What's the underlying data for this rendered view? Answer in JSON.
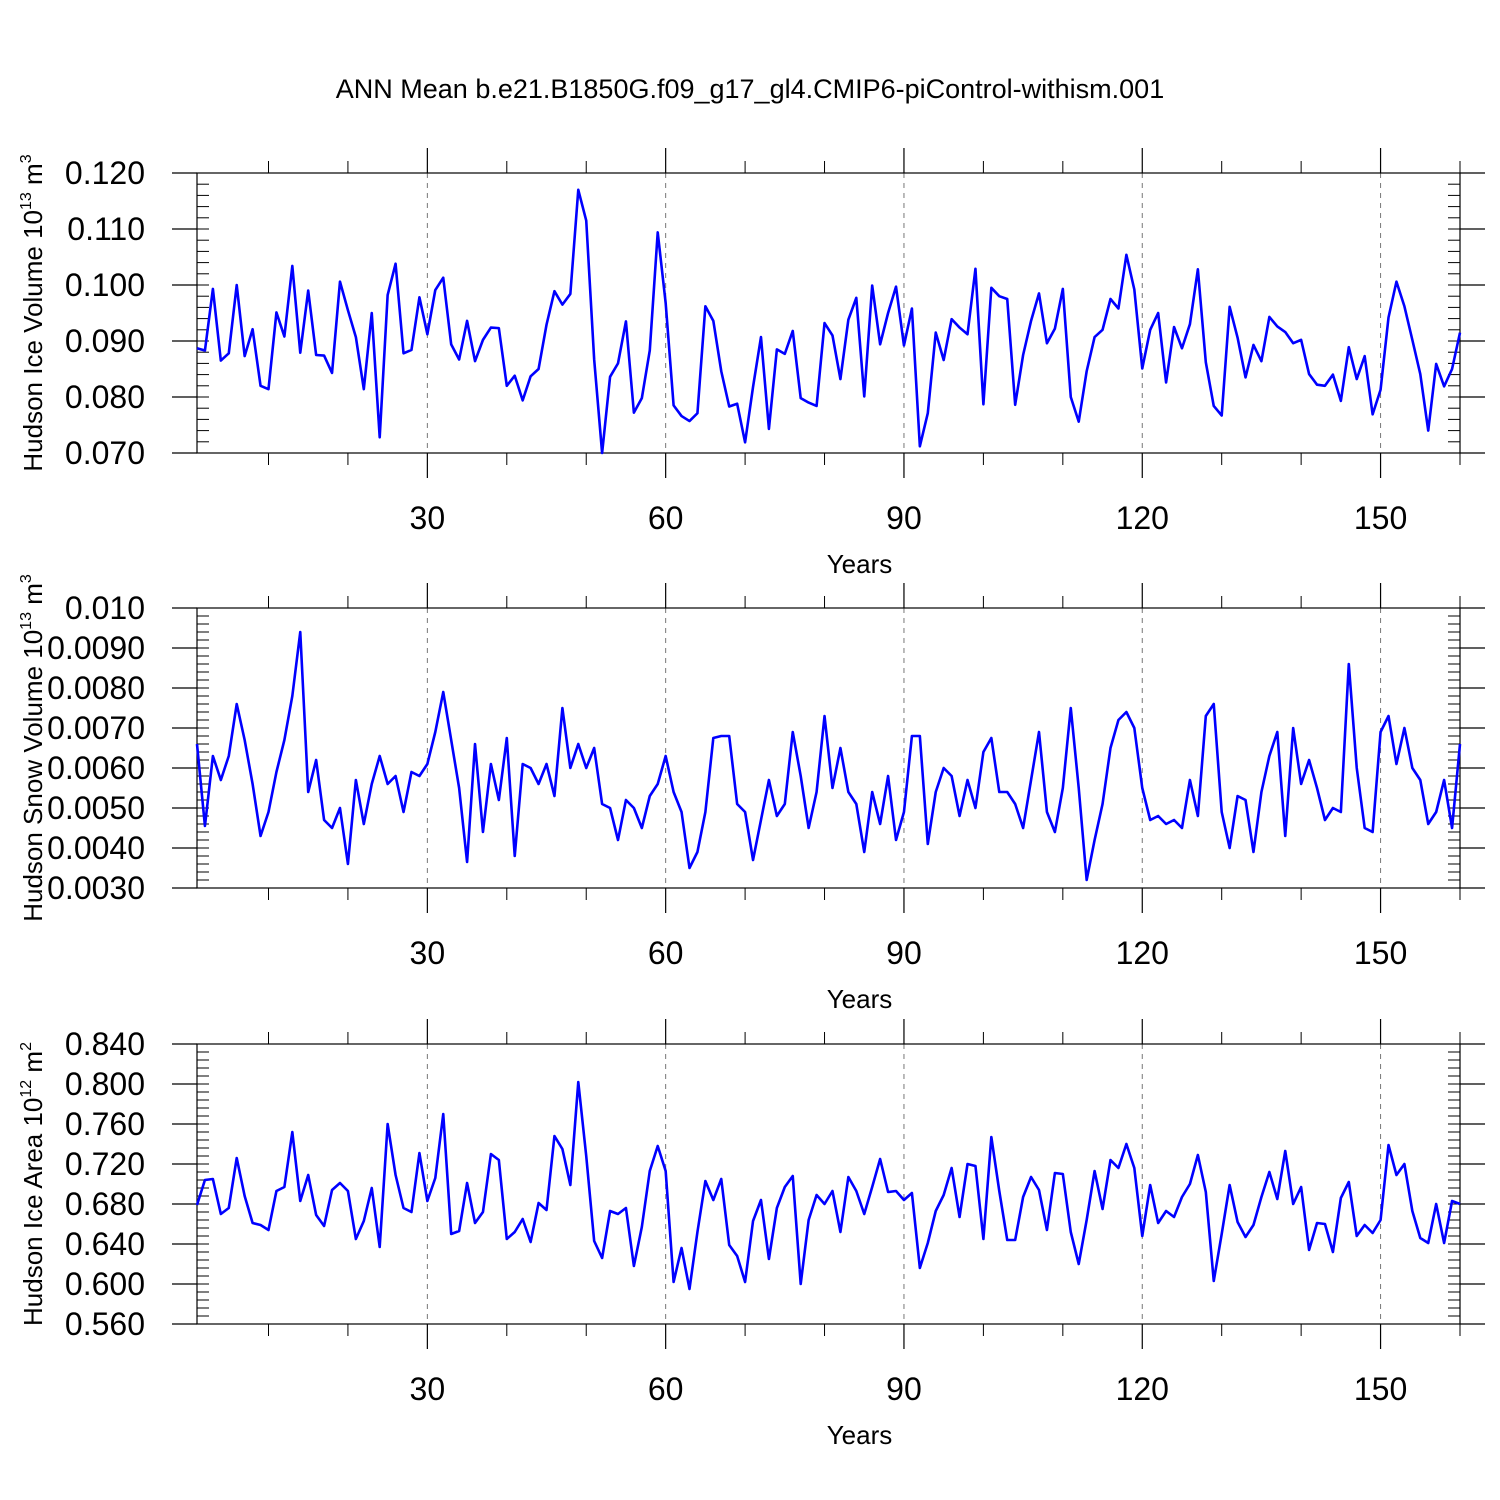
{
  "title": "ANN Mean b.e21.B1850G.f09_g17_gl4.CMIP6-piControl-withism.001",
  "line_color": "#0000ff",
  "chart_data": [
    {
      "type": "line",
      "title": "",
      "xlabel": "Years",
      "ylabel": {
        "text": "Hudson Ice Volume 10",
        "sup": "13",
        "unit": " m",
        "unit_sup": "3"
      },
      "xlim": [
        1,
        160
      ],
      "ylim": [
        0.07,
        0.12
      ],
      "xticks": [
        30,
        60,
        90,
        120,
        150
      ],
      "xtick_labels": [
        "30",
        "60",
        "90",
        "120",
        "150"
      ],
      "yticks": [
        0.07,
        0.08,
        0.09,
        0.1,
        0.11,
        0.12
      ],
      "ytick_labels": [
        "0.070",
        "0.080",
        "0.090",
        "0.100",
        "0.110",
        "0.120"
      ],
      "y_minor_step": 0.002,
      "grid": "vertical dashed at x ticks",
      "series": [
        {
          "values": [
            0.0887,
            0.0883,
            0.0993,
            0.0865,
            0.0878,
            0.1,
            0.0873,
            0.0921,
            0.082,
            0.0814,
            0.0951,
            0.0908,
            0.1034,
            0.0879,
            0.099,
            0.0875,
            0.0874,
            0.0843,
            0.1006,
            0.0955,
            0.0907,
            0.0814,
            0.095,
            0.0728,
            0.0982,
            0.1038,
            0.0878,
            0.0884,
            0.0978,
            0.0912,
            0.0991,
            0.1013,
            0.0894,
            0.0867,
            0.0936,
            0.0864,
            0.0902,
            0.0924,
            0.0923,
            0.082,
            0.0838,
            0.0794,
            0.0837,
            0.085,
            0.0929,
            0.0989,
            0.0965,
            0.0984,
            0.117,
            0.1115,
            0.0867,
            0.07,
            0.0836,
            0.086,
            0.0935,
            0.0772,
            0.0798,
            0.0883,
            0.1094,
            0.0968,
            0.0785,
            0.0766,
            0.0757,
            0.0771,
            0.0962,
            0.0936,
            0.0846,
            0.0783,
            0.0788,
            0.0719,
            0.0818,
            0.0907,
            0.0743,
            0.0885,
            0.0877,
            0.0918,
            0.0798,
            0.079,
            0.0784,
            0.0932,
            0.091,
            0.0832,
            0.0938,
            0.0977,
            0.0801,
            0.0999,
            0.0894,
            0.095,
            0.0997,
            0.0892,
            0.0958,
            0.0712,
            0.0771,
            0.0915,
            0.0866,
            0.0939,
            0.0924,
            0.0912,
            0.1029,
            0.0787,
            0.0995,
            0.098,
            0.0975,
            0.0786,
            0.0875,
            0.0936,
            0.0985,
            0.0896,
            0.0922,
            0.0993,
            0.08,
            0.0756,
            0.0846,
            0.0907,
            0.092,
            0.0975,
            0.0958,
            0.1054,
            0.0992,
            0.0851,
            0.092,
            0.095,
            0.0826,
            0.0925,
            0.0887,
            0.093,
            0.1028,
            0.0862,
            0.0784,
            0.0767,
            0.0961,
            0.0906,
            0.0835,
            0.0893,
            0.0864,
            0.0943,
            0.0926,
            0.0916,
            0.0896,
            0.0902,
            0.0841,
            0.0822,
            0.082,
            0.084,
            0.0793,
            0.0889,
            0.0832,
            0.0873,
            0.0769,
            0.0813,
            0.0942,
            0.1006,
            0.0962,
            0.0902,
            0.0841,
            0.074,
            0.0859,
            0.0819,
            0.085,
            0.0915
          ]
        }
      ]
    },
    {
      "type": "line",
      "title": "",
      "xlabel": "Years",
      "ylabel": {
        "text": "Hudson Snow Volume 10",
        "sup": "13",
        "unit": " m",
        "unit_sup": "3"
      },
      "xlim": [
        1,
        160
      ],
      "ylim": [
        0.003,
        0.01
      ],
      "xticks": [
        30,
        60,
        90,
        120,
        150
      ],
      "xtick_labels": [
        "30",
        "60",
        "90",
        "120",
        "150"
      ],
      "yticks": [
        0.003,
        0.004,
        0.005,
        0.006,
        0.007,
        0.008,
        0.009,
        0.01
      ],
      "ytick_labels": [
        "0.0030",
        "0.0040",
        "0.0050",
        "0.0060",
        "0.0070",
        "0.0080",
        "0.0090",
        "0.010"
      ],
      "y_minor_step": 0.0002,
      "grid": "vertical dashed at x ticks",
      "series": [
        {
          "values": [
            0.0066,
            0.00455,
            0.0063,
            0.0057,
            0.0063,
            0.0076,
            0.0067,
            0.0056,
            0.0043,
            0.0049,
            0.0059,
            0.0067,
            0.0078,
            0.0094,
            0.0054,
            0.0062,
            0.0047,
            0.0045,
            0.005,
            0.0036,
            0.0057,
            0.0046,
            0.0056,
            0.0063,
            0.0056,
            0.0058,
            0.0049,
            0.0059,
            0.0058,
            0.0061,
            0.0069,
            0.0079,
            0.0067,
            0.0055,
            0.00365,
            0.0066,
            0.0044,
            0.0061,
            0.0052,
            0.00675,
            0.0038,
            0.0061,
            0.006,
            0.0056,
            0.0061,
            0.0053,
            0.0075,
            0.006,
            0.0066,
            0.006,
            0.0065,
            0.0051,
            0.005,
            0.0042,
            0.0052,
            0.005,
            0.0045,
            0.0053,
            0.0056,
            0.0063,
            0.0054,
            0.0049,
            0.0035,
            0.0039,
            0.0049,
            0.00675,
            0.0068,
            0.0068,
            0.0051,
            0.0049,
            0.0037,
            0.0047,
            0.0057,
            0.0048,
            0.0051,
            0.0069,
            0.0058,
            0.0045,
            0.0054,
            0.0073,
            0.0055,
            0.0065,
            0.0054,
            0.0051,
            0.0039,
            0.0054,
            0.0046,
            0.0058,
            0.0042,
            0.0049,
            0.0068,
            0.0068,
            0.0041,
            0.0054,
            0.006,
            0.0058,
            0.0048,
            0.0057,
            0.005,
            0.0064,
            0.00675,
            0.0054,
            0.0054,
            0.0051,
            0.0045,
            0.0057,
            0.0069,
            0.0049,
            0.0044,
            0.0055,
            0.0075,
            0.0055,
            0.0032,
            0.0042,
            0.0051,
            0.0065,
            0.0072,
            0.0074,
            0.007,
            0.0055,
            0.0047,
            0.0048,
            0.0046,
            0.0047,
            0.0045,
            0.0057,
            0.0048,
            0.0073,
            0.0076,
            0.0049,
            0.004,
            0.0053,
            0.0052,
            0.0039,
            0.0054,
            0.0063,
            0.0069,
            0.0043,
            0.007,
            0.0056,
            0.0062,
            0.0055,
            0.0047,
            0.005,
            0.0049,
            0.0086,
            0.006,
            0.0045,
            0.0044,
            0.0069,
            0.0073,
            0.0061,
            0.007,
            0.006,
            0.0057,
            0.0046,
            0.0049,
            0.0057,
            0.0045,
            0.0066
          ]
        }
      ]
    },
    {
      "type": "line",
      "title": "",
      "xlabel": "Years",
      "ylabel": {
        "text": "Hudson Ice Area 10",
        "sup": "12",
        "unit": " m",
        "unit_sup": "2"
      },
      "xlim": [
        1,
        160
      ],
      "ylim": [
        0.56,
        0.84
      ],
      "xticks": [
        30,
        60,
        90,
        120,
        150
      ],
      "xtick_labels": [
        "30",
        "60",
        "90",
        "120",
        "150"
      ],
      "yticks": [
        0.56,
        0.6,
        0.64,
        0.68,
        0.72,
        0.76,
        0.8,
        0.84
      ],
      "ytick_labels": [
        "0.560",
        "0.600",
        "0.640",
        "0.680",
        "0.720",
        "0.760",
        "0.800",
        "0.840"
      ],
      "y_minor_step": 0.008,
      "grid": "vertical dashed at x ticks",
      "series": [
        {
          "values": [
            0.679,
            0.704,
            0.705,
            0.67,
            0.676,
            0.726,
            0.688,
            0.661,
            0.659,
            0.654,
            0.693,
            0.697,
            0.752,
            0.683,
            0.709,
            0.669,
            0.658,
            0.694,
            0.701,
            0.693,
            0.645,
            0.663,
            0.696,
            0.637,
            0.76,
            0.709,
            0.676,
            0.672,
            0.731,
            0.683,
            0.706,
            0.77,
            0.65,
            0.653,
            0.701,
            0.661,
            0.672,
            0.73,
            0.724,
            0.645,
            0.652,
            0.665,
            0.642,
            0.681,
            0.674,
            0.748,
            0.735,
            0.699,
            0.802,
            0.728,
            0.643,
            0.626,
            0.673,
            0.67,
            0.676,
            0.618,
            0.657,
            0.713,
            0.738,
            0.713,
            0.602,
            0.636,
            0.595,
            0.652,
            0.703,
            0.684,
            0.705,
            0.639,
            0.628,
            0.602,
            0.663,
            0.684,
            0.625,
            0.676,
            0.697,
            0.708,
            0.6,
            0.664,
            0.689,
            0.68,
            0.693,
            0.652,
            0.707,
            0.693,
            0.67,
            0.697,
            0.725,
            0.692,
            0.693,
            0.684,
            0.691,
            0.616,
            0.641,
            0.673,
            0.689,
            0.716,
            0.667,
            0.72,
            0.718,
            0.645,
            0.747,
            0.693,
            0.644,
            0.644,
            0.687,
            0.707,
            0.694,
            0.654,
            0.711,
            0.71,
            0.652,
            0.62,
            0.664,
            0.713,
            0.675,
            0.724,
            0.716,
            0.74,
            0.716,
            0.648,
            0.699,
            0.661,
            0.673,
            0.667,
            0.687,
            0.7,
            0.729,
            0.692,
            0.603,
            0.65,
            0.699,
            0.662,
            0.647,
            0.659,
            0.687,
            0.712,
            0.685,
            0.733,
            0.68,
            0.697,
            0.634,
            0.661,
            0.66,
            0.632,
            0.686,
            0.702,
            0.648,
            0.659,
            0.651,
            0.664,
            0.739,
            0.709,
            0.72,
            0.673,
            0.646,
            0.641,
            0.68,
            0.641,
            0.683,
            0.68
          ]
        }
      ]
    }
  ]
}
